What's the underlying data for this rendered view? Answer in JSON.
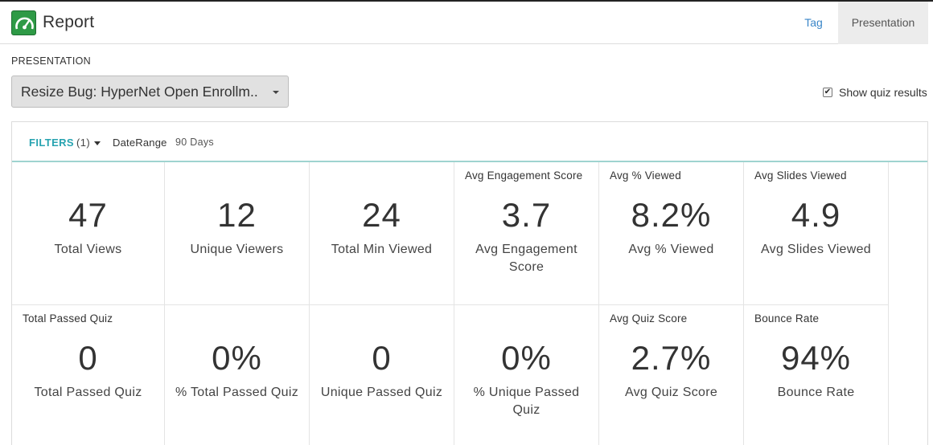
{
  "header": {
    "title": "Report",
    "logo_icon": "speedometer-icon",
    "nav": [
      {
        "label": "Tag"
      },
      {
        "label": "Presentation"
      }
    ]
  },
  "presentation": {
    "section_label": "PRESENTATION",
    "selected": "Resize Bug: HyperNet Open Enrollm..",
    "show_quiz_label": "Show quiz results",
    "show_quiz_checked": true
  },
  "filters": {
    "button_label": "FILTERS",
    "count": "(1)",
    "items": [
      {
        "key": "DateRange",
        "value": "90 Days"
      }
    ]
  },
  "metrics": [
    {
      "header": "",
      "value": "47",
      "label": "Total Views"
    },
    {
      "header": "",
      "value": "12",
      "label": "Unique Viewers"
    },
    {
      "header": "",
      "value": "24",
      "label": "Total Min Viewed"
    },
    {
      "header": "Avg Engagement Score",
      "value": "3.7",
      "label": "Avg Engagement Score"
    },
    {
      "header": "Avg % Viewed",
      "value": "8.2%",
      "label": "Avg % Viewed"
    },
    {
      "header": "Avg Slides Viewed",
      "value": "4.9",
      "label": "Avg Slides Viewed"
    },
    {
      "header": "Total Passed Quiz",
      "value": "0",
      "label": "Total Passed Quiz"
    },
    {
      "header": "",
      "value": "0%",
      "label": "% Total Passed Quiz"
    },
    {
      "header": "",
      "value": "0",
      "label": "Unique Passed Quiz"
    },
    {
      "header": "",
      "value": "0%",
      "label": "% Unique Passed Quiz"
    },
    {
      "header": "Avg Quiz Score",
      "value": "2.7%",
      "label": "Avg Quiz Score"
    },
    {
      "header": "Bounce Rate",
      "value": "94%",
      "label": "Bounce Rate"
    }
  ],
  "colors": {
    "accent": "#27a3b0",
    "link": "#3a86c8",
    "logo": "#2e9a46"
  }
}
